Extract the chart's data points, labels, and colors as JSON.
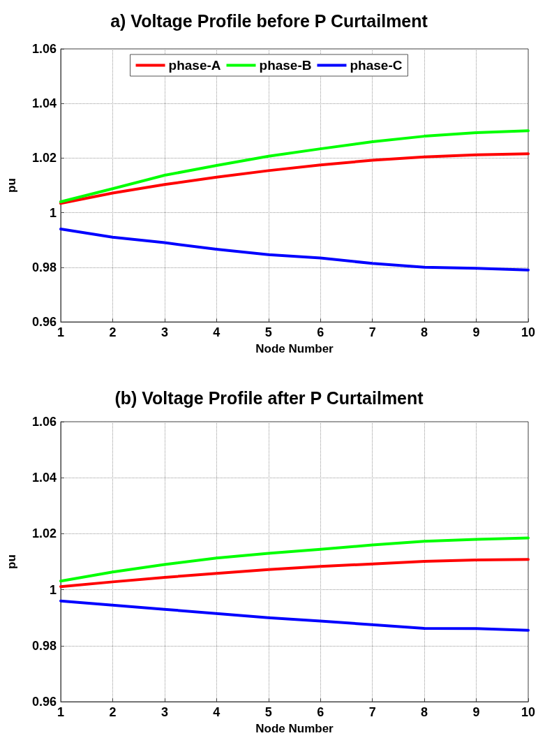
{
  "chart_data": [
    {
      "type": "line",
      "title": "a) Voltage Profile before P Curtailment",
      "xlabel": "Node Number",
      "ylabel": "pu",
      "x": [
        1,
        2,
        3,
        4,
        5,
        6,
        7,
        8,
        9,
        10
      ],
      "series": [
        {
          "name": "phase-A",
          "color": "#ff0000",
          "values": [
            1.0034,
            1.0072,
            1.0103,
            1.013,
            1.0154,
            1.0175,
            1.0192,
            1.0204,
            1.0212,
            1.0216
          ]
        },
        {
          "name": "phase-B",
          "color": "#00ff00",
          "values": [
            1.004,
            1.0088,
            1.0137,
            1.0173,
            1.0207,
            1.0234,
            1.026,
            1.028,
            1.0293,
            1.03
          ]
        },
        {
          "name": "phase-C",
          "color": "#0000ff",
          "values": [
            0.994,
            0.991,
            0.989,
            0.9866,
            0.9846,
            0.9834,
            0.9814,
            0.98,
            0.9796,
            0.979
          ]
        }
      ],
      "xlim": [
        1,
        10
      ],
      "xticks": [
        1,
        2,
        3,
        4,
        5,
        6,
        7,
        8,
        9,
        10
      ],
      "ylim": [
        0.96,
        1.06
      ],
      "yticks": [
        0.96,
        0.98,
        1,
        1.02,
        1.04,
        1.06
      ],
      "grid": true,
      "legend": "top",
      "marker": "none",
      "line_style": "solid"
    },
    {
      "type": "line",
      "title": "(b) Voltage Profile after P Curtailment",
      "xlabel": "Node Number",
      "ylabel": "pu",
      "x": [
        1,
        2,
        3,
        4,
        5,
        6,
        7,
        8,
        9,
        10
      ],
      "series": [
        {
          "color": "#ff0000",
          "values": [
            1.0011,
            1.0028,
            1.0044,
            1.0058,
            1.0072,
            1.0083,
            1.0092,
            1.0101,
            1.0106,
            1.0108
          ]
        },
        {
          "color": "#00ff00",
          "values": [
            1.0031,
            1.0063,
            1.009,
            1.0113,
            1.013,
            1.0144,
            1.016,
            1.0173,
            1.018,
            1.0185
          ]
        },
        {
          "color": "#0000ff",
          "values": [
            0.996,
            0.9945,
            0.993,
            0.9915,
            0.99,
            0.9888,
            0.9875,
            0.9862,
            0.9861,
            0.9855
          ]
        }
      ],
      "xlim": [
        1,
        10
      ],
      "xticks": [
        1,
        2,
        3,
        4,
        5,
        6,
        7,
        8,
        9,
        10
      ],
      "ylim": [
        0.96,
        1.06
      ],
      "yticks": [
        0.96,
        0.98,
        1,
        1.02,
        1.04,
        1.06
      ],
      "grid": true,
      "legend": false,
      "marker": "none",
      "line_style": "solid"
    }
  ]
}
